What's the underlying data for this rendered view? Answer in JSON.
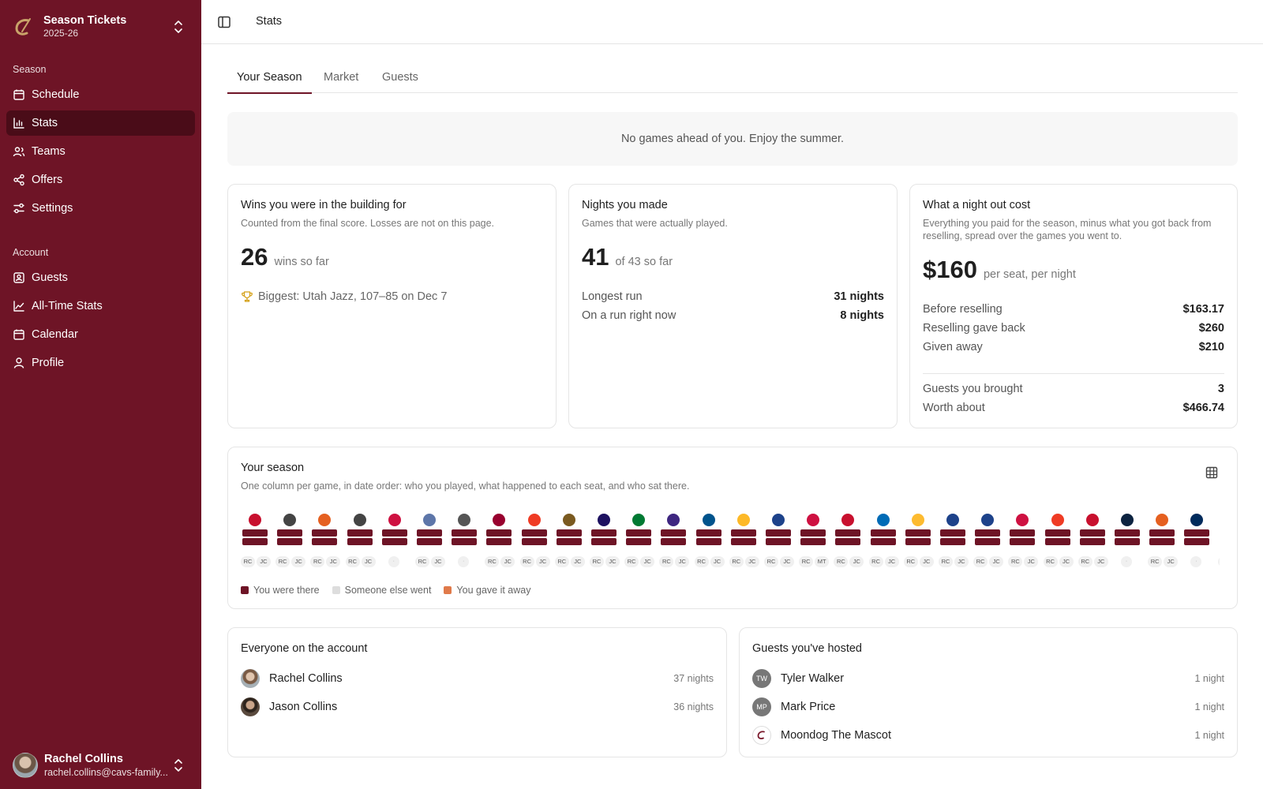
{
  "sidebar": {
    "app_title": "Season Tickets",
    "app_sub": "2025-26",
    "section_season": "Season",
    "section_account": "Account",
    "nav": [
      {
        "label": "Schedule",
        "icon": "calendar-icon"
      },
      {
        "label": "Stats",
        "icon": "bar-chart-icon"
      },
      {
        "label": "Teams",
        "icon": "users-icon"
      },
      {
        "label": "Offers",
        "icon": "share-icon"
      },
      {
        "label": "Settings",
        "icon": "settings-icon"
      }
    ],
    "account_nav": [
      {
        "label": "Guests",
        "icon": "contact-icon"
      },
      {
        "label": "All-Time Stats",
        "icon": "line-chart-icon"
      },
      {
        "label": "Calendar",
        "icon": "calendar-icon"
      },
      {
        "label": "Profile",
        "icon": "user-icon"
      }
    ],
    "user": {
      "name": "Rachel Collins",
      "email": "rachel.collins@cavs-family..."
    }
  },
  "topbar": {
    "breadcrumb": "Stats"
  },
  "tabs": [
    "Your Season",
    "Market",
    "Guests"
  ],
  "notice": "No games ahead of you. Enjoy the summer.",
  "wins": {
    "title": "Wins you were in the building for",
    "sub": "Counted from the final score. Losses are not on this page.",
    "value": "26",
    "suffix": "wins so far",
    "biggest": "Biggest: Utah Jazz, 107–85 on Dec 7"
  },
  "nights": {
    "title": "Nights you made",
    "sub": "Games that were actually played.",
    "value": "41",
    "suffix": "of 43 so far",
    "rows": [
      {
        "label": "Longest run",
        "value": "31 nights"
      },
      {
        "label": "On a run right now",
        "value": "8 nights"
      }
    ]
  },
  "cost": {
    "title": "What a night out cost",
    "sub": "Everything you paid for the season, minus what you got back from reselling, spread over the games you went to.",
    "value": "$160",
    "suffix": "per seat, per night",
    "rows": [
      {
        "label": "Before reselling",
        "value": "$163.17"
      },
      {
        "label": "Reselling gave back",
        "value": "$260"
      },
      {
        "label": "Given away",
        "value": "$210"
      }
    ],
    "rows2": [
      {
        "label": "Guests you brought",
        "value": "3"
      },
      {
        "label": "Worth about",
        "value": "$466.74"
      }
    ]
  },
  "season": {
    "title": "Your season",
    "sub": "One column per game, in date order: who you played, what happened to each seat, and who sat there.",
    "games": [
      {
        "color": "#c8102e",
        "seats": [
          "RC",
          "JC"
        ]
      },
      {
        "color": "#444444",
        "seats": [
          "RC",
          "JC"
        ]
      },
      {
        "color": "#e56020",
        "seats": [
          "RC",
          "JC"
        ]
      },
      {
        "color": "#444444",
        "seats": [
          "RC",
          "JC"
        ]
      },
      {
        "color": "#ce1141",
        "seats": []
      },
      {
        "color": "#5d76a9",
        "seats": [
          "RC",
          "JC"
        ]
      },
      {
        "color": "#555555",
        "seats": []
      },
      {
        "color": "#98002e",
        "seats": [
          "RC",
          "JC"
        ]
      },
      {
        "color": "#ef3b24",
        "seats": [
          "RC",
          "JC"
        ]
      },
      {
        "color": "#7a5a20",
        "seats": [
          "RC",
          "JC"
        ]
      },
      {
        "color": "#1d1160",
        "seats": [
          "RC",
          "JC"
        ]
      },
      {
        "color": "#007a33",
        "seats": [
          "RC",
          "JC"
        ]
      },
      {
        "color": "#3e2680",
        "seats": [
          "RC",
          "JC"
        ]
      },
      {
        "color": "#00538c",
        "seats": [
          "RC",
          "JC"
        ]
      },
      {
        "color": "#fdb927",
        "seats": [
          "RC",
          "JC"
        ]
      },
      {
        "color": "#1d428a",
        "seats": [
          "RC",
          "JC"
        ]
      },
      {
        "color": "#ce1141",
        "seats": [
          "RC",
          "MT"
        ]
      },
      {
        "color": "#c8102e",
        "seats": [
          "RC",
          "JC"
        ]
      },
      {
        "color": "#006bb6",
        "seats": [
          "RC",
          "JC"
        ]
      },
      {
        "color": "#fdbb30",
        "seats": [
          "RC",
          "JC"
        ]
      },
      {
        "color": "#1d428a",
        "seats": [
          "RC",
          "JC"
        ]
      },
      {
        "color": "#1d428a",
        "seats": [
          "RC",
          "JC"
        ]
      },
      {
        "color": "#ce1141",
        "seats": [
          "RC",
          "JC"
        ]
      },
      {
        "color": "#ef3b24",
        "seats": [
          "RC",
          "JC"
        ]
      },
      {
        "color": "#c8102e",
        "seats": [
          "RC",
          "JC"
        ]
      },
      {
        "color": "#0c2340",
        "seats": []
      },
      {
        "color": "#e56020",
        "seats": [
          "RC",
          "JC"
        ]
      },
      {
        "color": "#002b5c",
        "seats": []
      },
      {
        "color": "#3e2680",
        "seats": [
          "RC"
        ]
      }
    ],
    "legend": [
      {
        "label": "You were there",
        "color": "#6e1426"
      },
      {
        "label": "Someone else went",
        "color": "#dddddd"
      },
      {
        "label": "You gave it away",
        "color": "#e07a4a"
      }
    ]
  },
  "everyone": {
    "title": "Everyone on the account",
    "people": [
      {
        "name": "Rachel Collins",
        "count": "37 nights"
      },
      {
        "name": "Jason Collins",
        "count": "36 nights"
      }
    ]
  },
  "guests": {
    "title": "Guests you've hosted",
    "people": [
      {
        "initials": "TW",
        "name": "Tyler Walker",
        "count": "1 night"
      },
      {
        "initials": "MP",
        "name": "Mark Price",
        "count": "1 night"
      },
      {
        "initials": "",
        "name": "Moondog The Mascot",
        "count": "1 night"
      }
    ]
  }
}
